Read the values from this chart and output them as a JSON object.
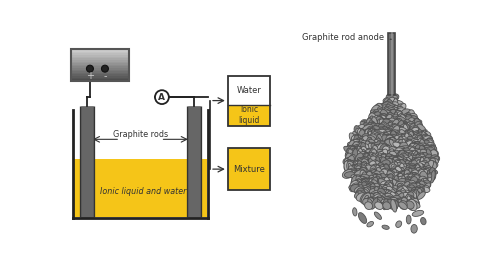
{
  "bg_color": "#ffffff",
  "liquid_color": "#f5c518",
  "rod_color": "#666666",
  "rod_dark": "#333333",
  "box_color": "#f5c518",
  "box_border": "#333333",
  "wire_color": "#222222",
  "tank_color": "#222222",
  "text_color": "#333333",
  "label_graphite_rods": "Graphite rods",
  "label_ionic_liquid": "Ionic liquid and water",
  "label_water": "Water",
  "label_ionic_liquid_box": "Ionic\nliquid",
  "label_mixture": "Mixture",
  "label_graphite_rod_anode": "Graphite rod anode"
}
